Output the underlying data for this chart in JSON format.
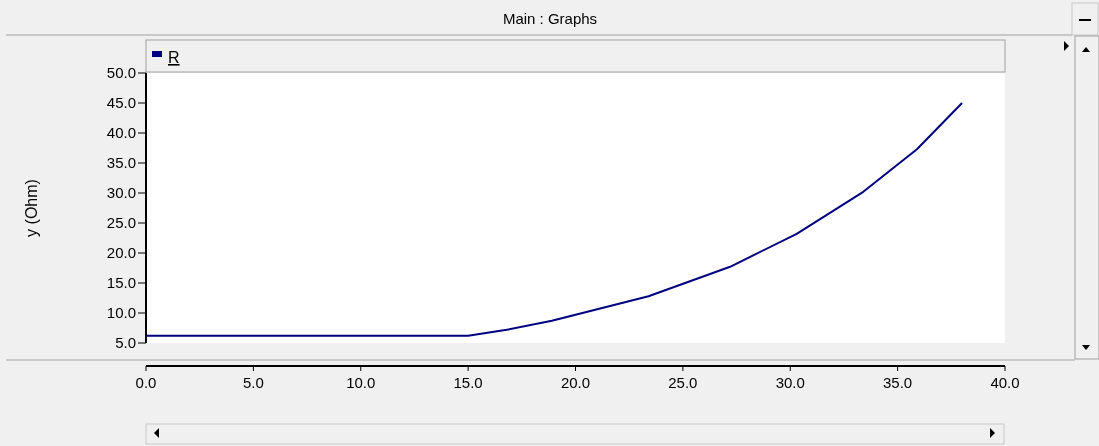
{
  "chart_data": {
    "type": "line",
    "title": "Main : Graphs",
    "ylabel": "y (Ohm)",
    "x": [
      0,
      15,
      16.8,
      18.9,
      23.4,
      27.2,
      30.3,
      33.4,
      35.9,
      38
    ],
    "series": [
      {
        "name": "R",
        "color": "#000080",
        "values": [
          6.2,
          6.2,
          7.2,
          8.7,
          12.8,
          17.7,
          23.2,
          30.2,
          37.3,
          45
        ]
      }
    ],
    "xlim": [
      0,
      40
    ],
    "xticks": [
      {
        "value": 0,
        "label": "0.0"
      },
      {
        "value": 5,
        "label": "5.0"
      },
      {
        "value": 10,
        "label": "10.0"
      },
      {
        "value": 15,
        "label": "15.0"
      },
      {
        "value": 20,
        "label": "20.0"
      },
      {
        "value": 25,
        "label": "25.0"
      },
      {
        "value": 30,
        "label": "30.0"
      },
      {
        "value": 35,
        "label": "35.0"
      },
      {
        "value": 40,
        "label": "40.0"
      }
    ],
    "ylim": [
      5,
      50
    ],
    "yticks": [
      {
        "value": 5,
        "label": "5.0"
      },
      {
        "value": 10,
        "label": "10.0"
      },
      {
        "value": 15,
        "label": "15.0"
      },
      {
        "value": 20,
        "label": "20.0"
      },
      {
        "value": 25,
        "label": "25.0"
      },
      {
        "value": 30,
        "label": "30.0"
      },
      {
        "value": 35,
        "label": "35.0"
      },
      {
        "value": 40,
        "label": "40.0"
      },
      {
        "value": 45,
        "label": "45.0"
      },
      {
        "value": 50,
        "label": "50.0"
      }
    ],
    "legend": "top left",
    "grid": false
  }
}
